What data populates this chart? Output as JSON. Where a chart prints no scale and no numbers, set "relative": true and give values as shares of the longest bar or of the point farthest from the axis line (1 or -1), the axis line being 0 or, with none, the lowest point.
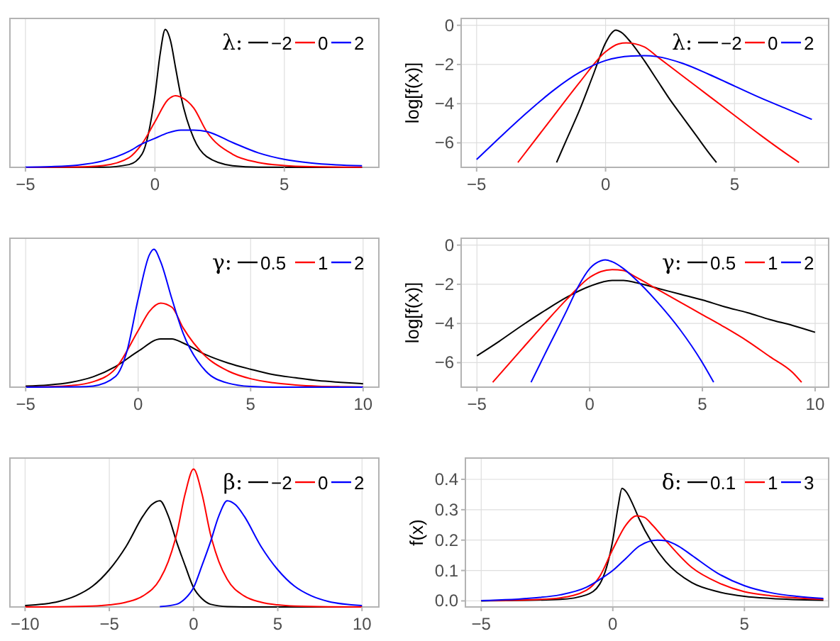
{
  "chart_data": [
    {
      "type": "line",
      "relative": true,
      "legend_title": "λ:",
      "legend": "top right",
      "grid": "x",
      "xlim": [
        -5.6,
        8.65
      ],
      "xticks": [
        -5,
        0,
        5
      ],
      "tick_labels": "x",
      "series": [
        {
          "name": "−2",
          "color": "#000000",
          "x": [
            -5,
            -2,
            -1,
            -0.5,
            0,
            0.2,
            0.4,
            0.6,
            0.8,
            1,
            1.5,
            2,
            3,
            4,
            8
          ],
          "values": [
            0,
            0.001,
            0.02,
            0.095,
            0.52,
            0.82,
            1,
            0.92,
            0.72,
            0.52,
            0.21,
            0.078,
            0.012,
            0.001,
            0
          ]
        },
        {
          "name": "0",
          "color": "#ff0000",
          "x": [
            -5,
            -3,
            -2,
            -1,
            -0.5,
            0,
            0.5,
            0.8,
            1,
            1.5,
            2,
            3,
            4,
            5,
            6,
            8
          ],
          "values": [
            0,
            0.003,
            0.013,
            0.07,
            0.17,
            0.33,
            0.49,
            0.52,
            0.51,
            0.43,
            0.26,
            0.095,
            0.035,
            0.013,
            0.005,
            0.001
          ]
        },
        {
          "name": "2",
          "color": "#0000ff",
          "x": [
            -5,
            -4,
            -3,
            -2,
            -1,
            -0.5,
            0,
            0.5,
            1,
            1.5,
            2,
            3,
            4,
            5,
            6,
            7,
            8
          ],
          "values": [
            0.0014,
            0.005,
            0.016,
            0.047,
            0.116,
            0.17,
            0.21,
            0.25,
            0.27,
            0.27,
            0.26,
            0.18,
            0.105,
            0.058,
            0.032,
            0.018,
            0.011
          ]
        }
      ]
    },
    {
      "type": "line",
      "ylabel": "log[f(x)]",
      "legend_title": "λ:",
      "legend": "top right",
      "grid": true,
      "xlim": [
        -5.6,
        8.65
      ],
      "xticks": [
        -5,
        0,
        5
      ],
      "ylim": [
        -7.25,
        0.35
      ],
      "yticks": [
        -6,
        -4,
        -2,
        0
      ],
      "series": [
        {
          "name": "−2",
          "color": "#000000",
          "x": [
            -1.9,
            -1.5,
            -1,
            -0.5,
            0,
            0.2,
            0.4,
            0.6,
            1,
            1.5,
            2,
            2.5,
            3,
            3.5,
            4,
            4.3
          ],
          "values": [
            -7,
            -5.8,
            -4.3,
            -2.6,
            -0.9,
            -0.45,
            -0.25,
            -0.35,
            -0.9,
            -1.8,
            -2.8,
            -3.8,
            -4.7,
            -5.6,
            -6.5,
            -7
          ]
        },
        {
          "name": "0",
          "color": "#ff0000",
          "x": [
            -3.4,
            -2,
            -1,
            0,
            0.5,
            0.8,
            1.5,
            2,
            3,
            4,
            5,
            6,
            7,
            7.5
          ],
          "values": [
            -7,
            -4.6,
            -2.9,
            -1.35,
            -0.95,
            -0.9,
            -1.1,
            -1.6,
            -2.6,
            -3.6,
            -4.6,
            -5.6,
            -6.55,
            -7
          ]
        },
        {
          "name": "2",
          "color": "#0000ff",
          "x": [
            -5,
            -4,
            -3,
            -2,
            -1,
            0,
            1,
            1.5,
            2,
            3,
            4,
            5,
            6,
            7,
            8
          ],
          "values": [
            -6.85,
            -5.6,
            -4.4,
            -3.3,
            -2.4,
            -1.8,
            -1.57,
            -1.55,
            -1.6,
            -1.95,
            -2.5,
            -3.1,
            -3.7,
            -4.25,
            -4.8
          ]
        }
      ]
    },
    {
      "type": "line",
      "relative": true,
      "legend_title": "γ:",
      "legend": "top right",
      "grid": "x",
      "xlim": [
        -5.7,
        10.7
      ],
      "xticks": [
        -5,
        0,
        5,
        10
      ],
      "tick_labels": "x",
      "series": [
        {
          "name": "0.5",
          "color": "#000000",
          "x": [
            -5,
            -4,
            -3,
            -2,
            -1,
            0,
            1,
            1.5,
            2,
            3,
            4,
            5,
            6,
            7,
            8,
            9,
            10
          ],
          "values": [
            0.0075,
            0.016,
            0.035,
            0.075,
            0.15,
            0.26,
            0.35,
            0.35,
            0.32,
            0.236,
            0.175,
            0.13,
            0.091,
            0.068,
            0.047,
            0.035,
            0.025
          ]
        },
        {
          "name": "1",
          "color": "#ff0000",
          "x": [
            -5,
            -4,
            -3,
            -2,
            -1,
            0,
            0.5,
            1,
            1.5,
            2,
            3,
            4,
            5,
            6,
            7,
            8,
            9,
            10
          ],
          "values": [
            0.001,
            0.003,
            0.011,
            0.039,
            0.136,
            0.41,
            0.55,
            0.61,
            0.58,
            0.43,
            0.223,
            0.117,
            0.061,
            0.032,
            0.016,
            0.007,
            0.003,
            0.001
          ]
        },
        {
          "name": "2",
          "color": "#0000ff",
          "x": [
            -5,
            -2.6,
            -2,
            -1,
            -0.5,
            0,
            0.5,
            0.7,
            1,
            1.5,
            2,
            3,
            4,
            5,
            6,
            10
          ],
          "values": [
            0,
            0.002,
            0.008,
            0.078,
            0.26,
            0.64,
            0.96,
            1,
            0.91,
            0.64,
            0.39,
            0.117,
            0.029,
            0.005,
            0,
            0
          ]
        }
      ]
    },
    {
      "type": "line",
      "ylabel": "log[f(x)]",
      "legend_title": "γ:",
      "legend": "top right",
      "grid": true,
      "xlim": [
        -5.7,
        10.6
      ],
      "xticks": [
        -5,
        0,
        5,
        10
      ],
      "ylim": [
        -7.25,
        0.35
      ],
      "yticks": [
        -6,
        -4,
        -2,
        0
      ],
      "series": [
        {
          "name": "0.5",
          "color": "#000000",
          "x": [
            -5,
            -4,
            -3,
            -2,
            -1,
            0,
            1,
            1.5,
            2,
            3,
            4,
            5,
            6,
            7,
            8,
            9,
            10
          ],
          "values": [
            -5.65,
            -4.9,
            -4.1,
            -3.35,
            -2.65,
            -2.1,
            -1.8,
            -1.8,
            -1.9,
            -2.2,
            -2.5,
            -2.8,
            -3.15,
            -3.45,
            -3.8,
            -4.1,
            -4.45
          ]
        },
        {
          "name": "1",
          "color": "#ff0000",
          "x": [
            -4.3,
            -3,
            -2,
            -1,
            0,
            0.5,
            1,
            1.5,
            2,
            3,
            4,
            5,
            6,
            7,
            8,
            9,
            9.4
          ],
          "values": [
            -7,
            -5.3,
            -4,
            -2.75,
            -1.65,
            -1.35,
            -1.25,
            -1.3,
            -1.6,
            -2.25,
            -2.9,
            -3.55,
            -4.2,
            -4.9,
            -5.7,
            -6.5,
            -7
          ]
        },
        {
          "name": "2",
          "color": "#0000ff",
          "x": [
            -2.6,
            -2,
            -1,
            -0.5,
            0,
            0.5,
            0.7,
            1,
            1.5,
            2,
            3,
            4,
            5,
            5.5
          ],
          "values": [
            -7,
            -5.6,
            -3.3,
            -2.1,
            -1.2,
            -0.8,
            -0.75,
            -0.85,
            -1.2,
            -1.7,
            -2.9,
            -4.3,
            -6,
            -7
          ]
        }
      ]
    },
    {
      "type": "line",
      "relative": true,
      "legend_title": "β:",
      "legend": "top right",
      "grid": "x",
      "xlim": [
        -10.9,
        11
      ],
      "xticks": [
        -10,
        -5,
        0,
        5,
        10
      ],
      "tick_labels": "x",
      "series": [
        {
          "name": "−2",
          "color": "#000000",
          "x": [
            -10,
            -8,
            -7,
            -6,
            -5,
            -4,
            -3,
            -2.5,
            -2,
            -1.5,
            -1,
            -0.5,
            0,
            0.5,
            1,
            2,
            4,
            10
          ],
          "values": [
            0.01,
            0.04,
            0.08,
            0.15,
            0.27,
            0.44,
            0.66,
            0.74,
            0.77,
            0.66,
            0.47,
            0.3,
            0.14,
            0.06,
            0.02,
            0.003,
            0,
            0
          ]
        },
        {
          "name": "0",
          "color": "#ff0000",
          "x": [
            -10,
            -8,
            -6,
            -5,
            -4,
            -3,
            -2,
            -1.5,
            -1,
            -0.5,
            0,
            0.5,
            1,
            1.5,
            2,
            3,
            4,
            5,
            6,
            8,
            10
          ],
          "values": [
            0,
            0.001,
            0.006,
            0.015,
            0.035,
            0.08,
            0.2,
            0.33,
            0.53,
            0.82,
            1,
            0.82,
            0.53,
            0.33,
            0.2,
            0.08,
            0.035,
            0.015,
            0.006,
            0.001,
            0
          ]
        },
        {
          "name": "2",
          "color": "#0000ff",
          "x": [
            -2,
            -1,
            -0.5,
            0,
            0.5,
            1,
            1.5,
            2,
            2.5,
            3,
            4,
            5,
            6,
            7,
            8,
            10
          ],
          "values": [
            0.003,
            0.02,
            0.06,
            0.14,
            0.3,
            0.47,
            0.66,
            0.77,
            0.74,
            0.66,
            0.44,
            0.27,
            0.15,
            0.08,
            0.04,
            0.01
          ]
        }
      ]
    },
    {
      "type": "line",
      "ylabel": "f(x)",
      "legend_title": "δ:",
      "legend": "top right",
      "grid": true,
      "xlim": [
        -5.6,
        8.2
      ],
      "xticks": [
        -5,
        0,
        5
      ],
      "ylim": [
        -0.02,
        0.47
      ],
      "yticks": [
        {
          "value": 0,
          "label": "0.0"
        },
        {
          "value": 0.1,
          "label": "0.1"
        },
        {
          "value": 0.2,
          "label": "0.2"
        },
        {
          "value": 0.3,
          "label": "0.3"
        },
        {
          "value": 0.4,
          "label": "0.4"
        }
      ],
      "series": [
        {
          "name": "0.1",
          "color": "#000000",
          "x": [
            -5,
            -2,
            -1,
            -0.5,
            0,
            0.2,
            0.35,
            0.5,
            0.8,
            1,
            1.5,
            2,
            3,
            4,
            5,
            6,
            8
          ],
          "values": [
            0,
            0.005,
            0.02,
            0.055,
            0.2,
            0.31,
            0.37,
            0.36,
            0.31,
            0.27,
            0.19,
            0.13,
            0.06,
            0.03,
            0.015,
            0.008,
            0.002
          ]
        },
        {
          "name": "1",
          "color": "#ff0000",
          "x": [
            -5,
            -3,
            -2,
            -1,
            -0.5,
            0,
            0.5,
            0.9,
            1.2,
            1.5,
            2,
            3,
            4,
            5,
            6,
            7,
            8
          ],
          "values": [
            0.001,
            0.004,
            0.01,
            0.035,
            0.08,
            0.17,
            0.25,
            0.28,
            0.275,
            0.25,
            0.2,
            0.11,
            0.06,
            0.03,
            0.017,
            0.01,
            0.005
          ]
        },
        {
          "name": "3",
          "color": "#0000ff",
          "x": [
            -5,
            -3,
            -2,
            -1,
            -0.5,
            0,
            0.5,
            1,
            1.7,
            2,
            2.5,
            3,
            4,
            5,
            6,
            7,
            8
          ],
          "values": [
            0.001,
            0.01,
            0.02,
            0.045,
            0.07,
            0.1,
            0.14,
            0.18,
            0.2,
            0.198,
            0.18,
            0.15,
            0.09,
            0.05,
            0.027,
            0.015,
            0.008
          ]
        }
      ]
    }
  ]
}
